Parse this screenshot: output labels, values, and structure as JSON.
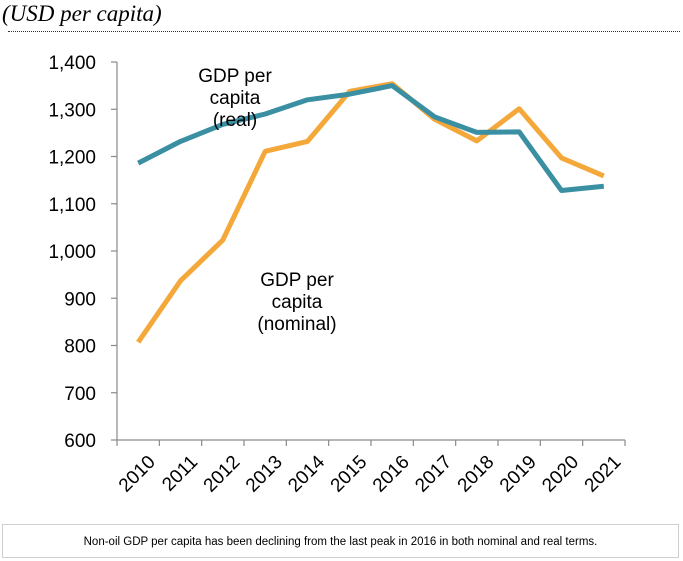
{
  "header": {
    "unit_label": "(USD per capita)"
  },
  "chart_data": {
    "type": "line",
    "title": "",
    "xlabel": "",
    "ylabel": "(USD per capita)",
    "ylim": [
      600,
      1400
    ],
    "yticks": [
      600,
      700,
      800,
      900,
      1000,
      1100,
      1200,
      1300,
      1400
    ],
    "ytick_labels": [
      "600",
      "700",
      "800",
      "900",
      "1,000",
      "1,100",
      "1,200",
      "1,300",
      "1,400"
    ],
    "categories": [
      "2010",
      "2011",
      "2012",
      "2013",
      "2014",
      "2015",
      "2016",
      "2017",
      "2018",
      "2019",
      "2020",
      "2021"
    ],
    "series": [
      {
        "name": "GDP per capita (real)",
        "label_lines": [
          "GDP per",
          "capita",
          "(real)"
        ],
        "color": "#3a8fa3",
        "values": [
          1186,
          1232,
          1268,
          1290,
          1320,
          1332,
          1350,
          1284,
          1251,
          1252,
          1128,
          1137
        ]
      },
      {
        "name": "GDP per capita (nominal)",
        "label_lines": [
          "GDP per",
          "capita",
          "(nominal)"
        ],
        "color": "#f5a83a",
        "values": [
          807,
          937,
          1023,
          1211,
          1232,
          1338,
          1354,
          1279,
          1233,
          1301,
          1197,
          1159
        ]
      }
    ],
    "grid": false,
    "legend": "inline labels"
  },
  "caption": "Non-oil GDP per capita has been declining from the last peak in 2016 in both nominal and real terms."
}
